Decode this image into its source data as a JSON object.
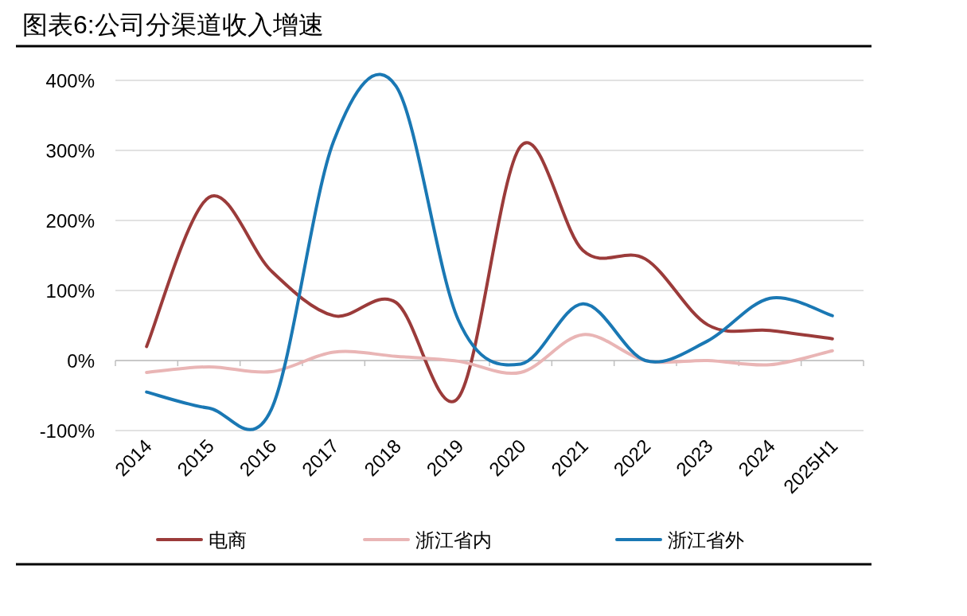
{
  "chart_data": {
    "type": "line",
    "title": "图表6:公司分渠道收入增速",
    "categories": [
      "2014",
      "2015",
      "2016",
      "2017",
      "2018",
      "2019",
      "2020",
      "2021",
      "2022",
      "2023",
      "2024",
      "2025H1"
    ],
    "series": [
      {
        "name": "电商",
        "color": "#9b3b3a",
        "values": [
          20,
          233,
          128,
          64,
          83,
          -53,
          306,
          157,
          145,
          51,
          43,
          31
        ]
      },
      {
        "name": "浙江省内",
        "color": "#e9b5b5",
        "values": [
          -17,
          -9,
          -16,
          12,
          6,
          -1,
          -17,
          37,
          0,
          0,
          -6,
          14
        ]
      },
      {
        "name": "浙江省外",
        "color": "#1a78b4",
        "values": [
          -45,
          -68,
          -70,
          313,
          392,
          58,
          -5,
          81,
          0,
          28,
          89,
          64
        ]
      }
    ],
    "ylim": [
      -100,
      400
    ],
    "yticks": [
      {
        "value": -100,
        "label": "-100%"
      },
      {
        "value": 0,
        "label": "0%"
      },
      {
        "value": 100,
        "label": "100%"
      },
      {
        "value": 200,
        "label": "200%"
      },
      {
        "value": 300,
        "label": "300%"
      },
      {
        "value": 400,
        "label": "400%"
      }
    ],
    "grid": "y",
    "legend": "bottom"
  }
}
